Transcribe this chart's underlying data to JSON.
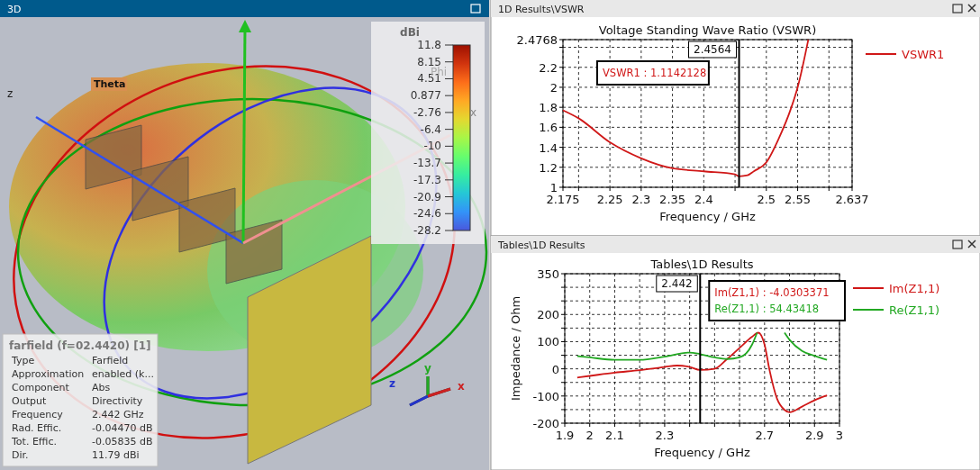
{
  "chart_data": [
    {
      "type": "other",
      "title": "3D",
      "annotations": [
        "Theta",
        "Phi",
        "z",
        "x",
        "z",
        "y",
        "x",
        "dBi",
        "11.8",
        "8.15",
        "4.51",
        "0.877",
        "-2.76",
        "-6.4",
        "-10",
        "-13.7",
        "-17.3",
        "-20.9",
        "-24.6",
        "-28.2",
        "farfield (f=02.4420) [1]",
        "Type",
        "Farfield",
        "Approximation",
        "enabled (k...",
        "Component",
        "Abs",
        "Output",
        "Directivity",
        "Frequency",
        "2.442 GHz",
        "Rad. Effic.",
        "-0.04470 dB",
        "Tot. Effic.",
        "-0.05835 dB",
        "Dir.",
        "11.79 dBi"
      ]
    },
    {
      "type": "line",
      "subtitle": "1D Results\\VSWR",
      "title": "Voltage Standing Wave Ratio (VSWR)",
      "xlabel": "Frequency / GHz",
      "xlim": [
        2.175,
        2.637
      ],
      "xticks": [
        2.175,
        {
          "value": 2.2,
          "label": null
        },
        2.25,
        2.3,
        2.35,
        2.4,
        {
          "value": 2.45,
          "label": null
        },
        2.5,
        2.55,
        {
          "value": 2.6,
          "label": null
        },
        2.637
      ],
      "ylim": [
        1,
        2.4768
      ],
      "yticks": [
        1,
        1.2,
        1.4,
        1.6,
        1.8,
        2,
        2.2,
        {
          "value": 2.4,
          "label": null
        },
        2.4768
      ],
      "grid": true,
      "legend": "right",
      "ref_lines": [
        {
          "axis": "x",
          "value": 2.4564,
          "label": "2.4564"
        }
      ],
      "annotations": [
        "VSWR1 : 1.1142128"
      ],
      "series": [
        {
          "name": "VSWR1",
          "color": "#d01818",
          "x": [
            2.175,
            2.2,
            2.25,
            2.3,
            2.35,
            2.4,
            2.45,
            2.4564,
            2.47,
            2.48,
            2.5,
            2.52,
            2.54,
            2.55,
            2.567
          ],
          "values": [
            1.77,
            1.69,
            1.45,
            1.29,
            1.19,
            1.16,
            1.13,
            1.11,
            1.12,
            1.16,
            1.25,
            1.49,
            1.8,
            2,
            2.4768
          ]
        }
      ]
    },
    {
      "type": "line",
      "subtitle": "Tables\\1D Results",
      "title": "Tables\\1D Results",
      "xlabel": "Frequency / GHz",
      "ylabel": "Impedance / Ohm",
      "xlim": [
        1.9,
        3
      ],
      "xticks": [
        1.9,
        2,
        2.1,
        {
          "value": 2.2,
          "label": null
        },
        2.3,
        {
          "value": 2.4,
          "label": null
        },
        {
          "value": 2.5,
          "label": null
        },
        {
          "value": 2.6,
          "label": null
        },
        2.7,
        {
          "value": 2.8,
          "label": null
        },
        2.9,
        3
      ],
      "ylim": [
        -200,
        350
      ],
      "yticks": [
        -200,
        {
          "value": -150,
          "label": null
        },
        -100,
        {
          "value": -50,
          "label": null
        },
        0,
        {
          "value": 50,
          "label": null
        },
        100,
        {
          "value": 150,
          "label": null
        },
        200,
        {
          "value": 250,
          "label": null
        },
        {
          "value": 300,
          "label": null
        },
        350
      ],
      "grid": true,
      "legend": "right",
      "ref_lines": [
        {
          "axis": "x",
          "value": 2.442,
          "label": "2.442"
        }
      ],
      "annotations": [
        "Im(Z1,1) : -4.0303371",
        "Re(Z1,1) : 54.43418"
      ],
      "series": [
        {
          "name": "Im(Z1,1)",
          "color": "#d01818",
          "x": [
            1.95,
            2,
            2.1,
            2.2,
            2.3,
            2.35,
            2.4,
            2.442,
            2.5,
            2.55,
            2.6,
            2.65,
            2.675,
            2.7,
            2.72,
            2.75,
            2.78,
            2.8,
            2.85,
            2.9,
            2.95
          ],
          "values": [
            -32,
            -26,
            -14,
            -5,
            7,
            12,
            7,
            -4,
            0,
            36,
            77,
            118,
            133,
            89,
            -5,
            -110,
            -151,
            -160,
            -139,
            -116,
            -98
          ]
        },
        {
          "name": "Re(Z1,1)",
          "color": "#22a822",
          "x": [
            1.95,
            2,
            2.1,
            2.2,
            2.3,
            2.4,
            2.442,
            2.5,
            2.55,
            2.6,
            2.65,
            2.67,
            2.7,
            2.75,
            2.78,
            2.8,
            2.85,
            2.9,
            2.95
          ],
          "values": [
            47,
            42,
            33,
            33,
            45,
            60,
            54,
            42,
            36,
            42,
            89,
            133,
            null,
            null,
            133,
            107,
            66,
            48,
            33
          ]
        }
      ]
    }
  ]
}
